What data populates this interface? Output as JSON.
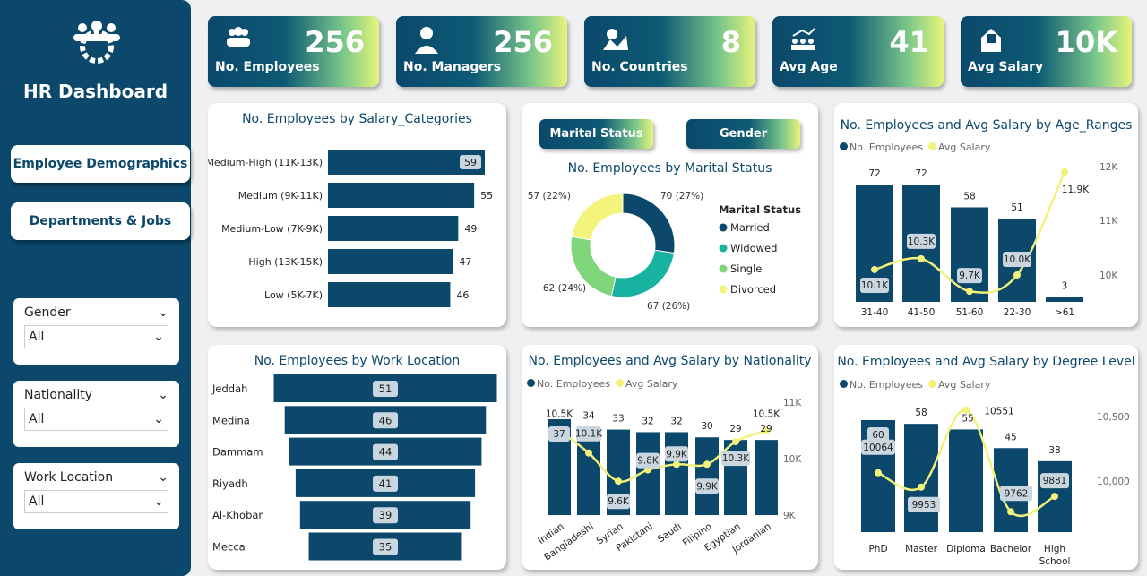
{
  "app": {
    "title": "HR Dashboard",
    "logo_icon": "team-gear-icon"
  },
  "nav": [
    {
      "label": "Employee Demographics",
      "active": true
    },
    {
      "label": "Departments & Jobs",
      "active": false
    }
  ],
  "filters": [
    {
      "label": "Gender",
      "value": "All"
    },
    {
      "label": "Nationality",
      "value": "All"
    },
    {
      "label": "Work Location",
      "value": "All"
    }
  ],
  "kpis": [
    {
      "label": "No. Employees",
      "value": "256",
      "icon": "people-icon"
    },
    {
      "label": "No. Managers",
      "value": "256",
      "icon": "manager-icon"
    },
    {
      "label": "No. Countries",
      "value": "8",
      "icon": "map-pin-icon"
    },
    {
      "label": "Avg Age",
      "value": "41",
      "icon": "age-growth-icon"
    },
    {
      "label": "Avg Salary",
      "value": "10K",
      "icon": "money-envelope-icon"
    }
  ],
  "colors": {
    "navy": "#0b486b",
    "yellow": "#f2f27a",
    "married": "#0b486b",
    "widowed": "#17b3a0",
    "single": "#7fd67a",
    "divorced": "#f4f47c"
  },
  "toggles": [
    "Marital Status",
    "Gender"
  ],
  "legend": {
    "employees": "No. Employees",
    "salary": "Avg Salary"
  },
  "chart_data": [
    {
      "type": "bar",
      "orientation": "horizontal",
      "title": "No. Employees by Salary_Categories",
      "categories": [
        "Medium-High (11K-13K)",
        "Medium (9K-11K)",
        "Medium-Low (7K-9K)",
        "High (13K-15K)",
        "Low (5K-7K)"
      ],
      "values": [
        59,
        55,
        49,
        47,
        46
      ]
    },
    {
      "type": "pie",
      "title": "No. Employees by Marital Status",
      "legend_title": "Marital Status",
      "categories": [
        "Married",
        "Widowed",
        "Single",
        "Divorced"
      ],
      "values": [
        70,
        67,
        62,
        57
      ],
      "labels": [
        "70 (27%)",
        "67 (26%)",
        "62 (24%)",
        "57 (22%)"
      ]
    },
    {
      "type": "bar+line",
      "title": "No. Employees and Avg Salary by Age_Ranges",
      "categories": [
        "31-40",
        "41-50",
        "51-60",
        "22-30",
        ">61"
      ],
      "series": [
        {
          "name": "No. Employees",
          "values": [
            72,
            72,
            58,
            51,
            3
          ]
        },
        {
          "name": "Avg Salary",
          "values": [
            10100,
            10300,
            9700,
            10000,
            11900
          ],
          "labels": [
            "10.1K",
            "10.3K",
            "9.7K",
            "10.0K",
            "11.9K"
          ]
        }
      ],
      "y2_ticks": [
        "12K",
        "11K",
        "10K"
      ],
      "y2lim": [
        10000,
        12000
      ]
    },
    {
      "type": "bar",
      "orientation": "horizontal-funnel",
      "title": "No. Employees by Work Location",
      "categories": [
        "Jeddah",
        "Medina",
        "Dammam",
        "Riyadh",
        "Al-Khobar",
        "Mecca"
      ],
      "values": [
        51,
        46,
        44,
        41,
        39,
        35
      ]
    },
    {
      "type": "bar+line",
      "title": "No. Employees and Avg Salary by Nationality",
      "categories": [
        "Indian",
        "Bangladeshi",
        "Syrian",
        "Pakistani",
        "Saudi",
        "Filipino",
        "Egyptian",
        "Jordanian"
      ],
      "series": [
        {
          "name": "No. Employees",
          "values": [
            37,
            34,
            33,
            32,
            32,
            30,
            29,
            29
          ]
        },
        {
          "name": "Avg Salary",
          "values": [
            10500,
            10100,
            9600,
            9800,
            9900,
            9900,
            10300,
            10500
          ],
          "labels": [
            "10.5K",
            "10.1K",
            "9.6K",
            "9.8K",
            "9.9K",
            "9.9K",
            "10.3K",
            "10.5K"
          ]
        }
      ],
      "y2_ticks": [
        "11K",
        "10K",
        "9K"
      ],
      "y2lim": [
        9000,
        11000
      ]
    },
    {
      "type": "bar+line",
      "title": "No. Employees and Avg Salary by Degree Level",
      "categories": [
        "PhD",
        "Master",
        "Diploma",
        "Bachelor",
        "High School"
      ],
      "series": [
        {
          "name": "No. Employees",
          "values": [
            60,
            58,
            55,
            45,
            38
          ]
        },
        {
          "name": "Avg Salary",
          "values": [
            10064,
            9953,
            10551,
            9762,
            9881
          ],
          "labels": [
            "10064",
            "9953",
            "10551",
            "9762",
            "9881"
          ]
        }
      ],
      "y2_ticks": [
        "10,500",
        "10,000"
      ],
      "y2lim": [
        10000,
        10500
      ]
    }
  ]
}
